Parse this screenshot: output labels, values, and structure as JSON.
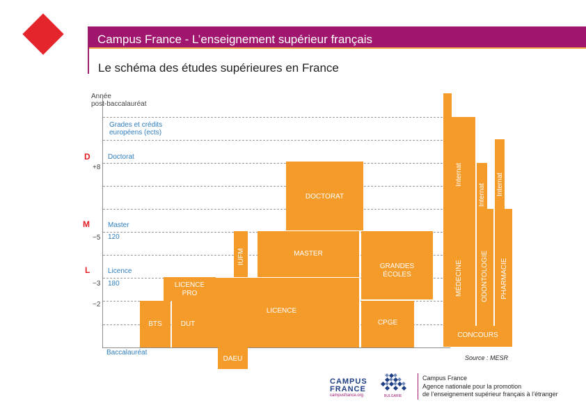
{
  "header": {
    "title": "Campus France - L’enseignement supérieur français",
    "subtitle": "Le schéma des études supérieures en France"
  },
  "axis": {
    "annee_line1": "Année",
    "annee_line2": "post-baccalauréat",
    "grades_line1": "Grades et crédits",
    "grades_line2": "européens (ects)",
    "d_letter": "D",
    "doctorat": "Doctorat",
    "plus8": "+8",
    "m_letter": "M",
    "master": "Master",
    "minus5": "−5",
    "credits120": "120",
    "l_letter": "L",
    "licence": "Licence",
    "minus3": "−3",
    "credits180": "180",
    "minus2": "−2",
    "baccalaureat": "Baccalauréat"
  },
  "blocks": {
    "doctorat": "DOCTORAT",
    "iufm": "IUFM",
    "master": "MASTER",
    "grandes_ecoles_1": "GRANDES",
    "grandes_ecoles_2": "ÉCOLES",
    "licence_pro_1": "LICENCE",
    "licence_pro_2": "PRO",
    "licence": "LICENCE",
    "bts": "BTS",
    "dut": "DUT",
    "cpge": "CPGE",
    "daeu": "DAEU",
    "medecine": "MÉDECINE",
    "odontologie": "ODONTOLOGIE",
    "pharmacie": "PHARMACIE",
    "internat1": "Internat",
    "internat2": "Internat",
    "internat3": "Internat",
    "concours": "CONCOURS"
  },
  "source": "Source : MESR",
  "logo": {
    "line1": "CAMPUS",
    "line2": "FRANCE",
    "url": "campusfrance.org",
    "country": "BULGARIE"
  },
  "footer": {
    "line1": "Campus France",
    "line2": "Agence nationale pour la promotion",
    "line3": "de l’enseignement supérieur français à l’étranger"
  },
  "colors": {
    "bar": "#a0166f",
    "accent": "#e4262c",
    "block": "#f59b2a"
  }
}
